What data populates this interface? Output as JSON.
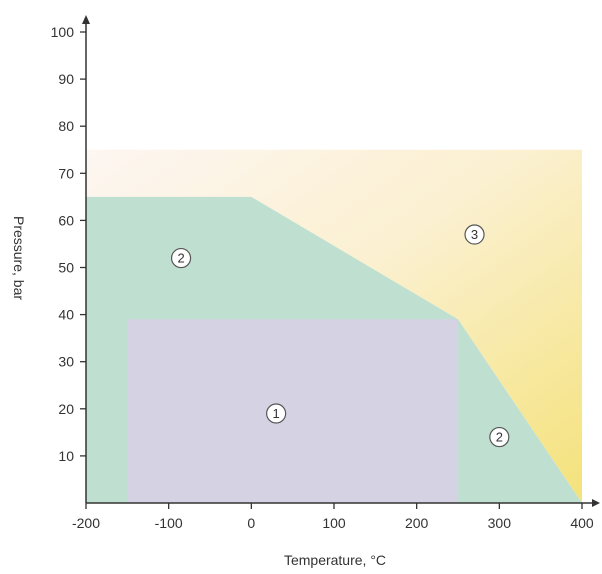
{
  "chart_data": {
    "type": "area",
    "title": "",
    "xlabel": "Temperature, °C",
    "ylabel": "Pressure, bar",
    "xlim": [
      -200,
      400
    ],
    "ylim": [
      0,
      100
    ],
    "x_ticks": [
      -200,
      -100,
      0,
      100,
      200,
      300,
      400
    ],
    "y_ticks": [
      10,
      20,
      30,
      40,
      50,
      60,
      70,
      80,
      90,
      100
    ],
    "grid": false,
    "regions": [
      {
        "marker": "3",
        "color": "#f6e68a",
        "points": [
          [
            -200,
            75
          ],
          [
            400,
            75
          ],
          [
            400,
            0
          ],
          [
            250,
            39
          ],
          [
            0,
            65
          ],
          [
            -200,
            65
          ]
        ]
      },
      {
        "marker": "2",
        "color": "#bfe0d0",
        "points": [
          [
            -200,
            0
          ],
          [
            400,
            0
          ],
          [
            250,
            39
          ],
          [
            0,
            65
          ],
          [
            -200,
            65
          ]
        ]
      },
      {
        "marker": "1",
        "color": "#d5d2e3",
        "points": [
          [
            -150,
            0
          ],
          [
            250,
            0
          ],
          [
            250,
            39
          ],
          [
            -150,
            39
          ]
        ]
      }
    ],
    "markers": [
      {
        "label": "1",
        "x": 30,
        "y": 19
      },
      {
        "label": "2",
        "x": -85,
        "y": 52
      },
      {
        "label": "2",
        "x": 300,
        "y": 14
      },
      {
        "label": "3",
        "x": 270,
        "y": 57
      }
    ]
  }
}
